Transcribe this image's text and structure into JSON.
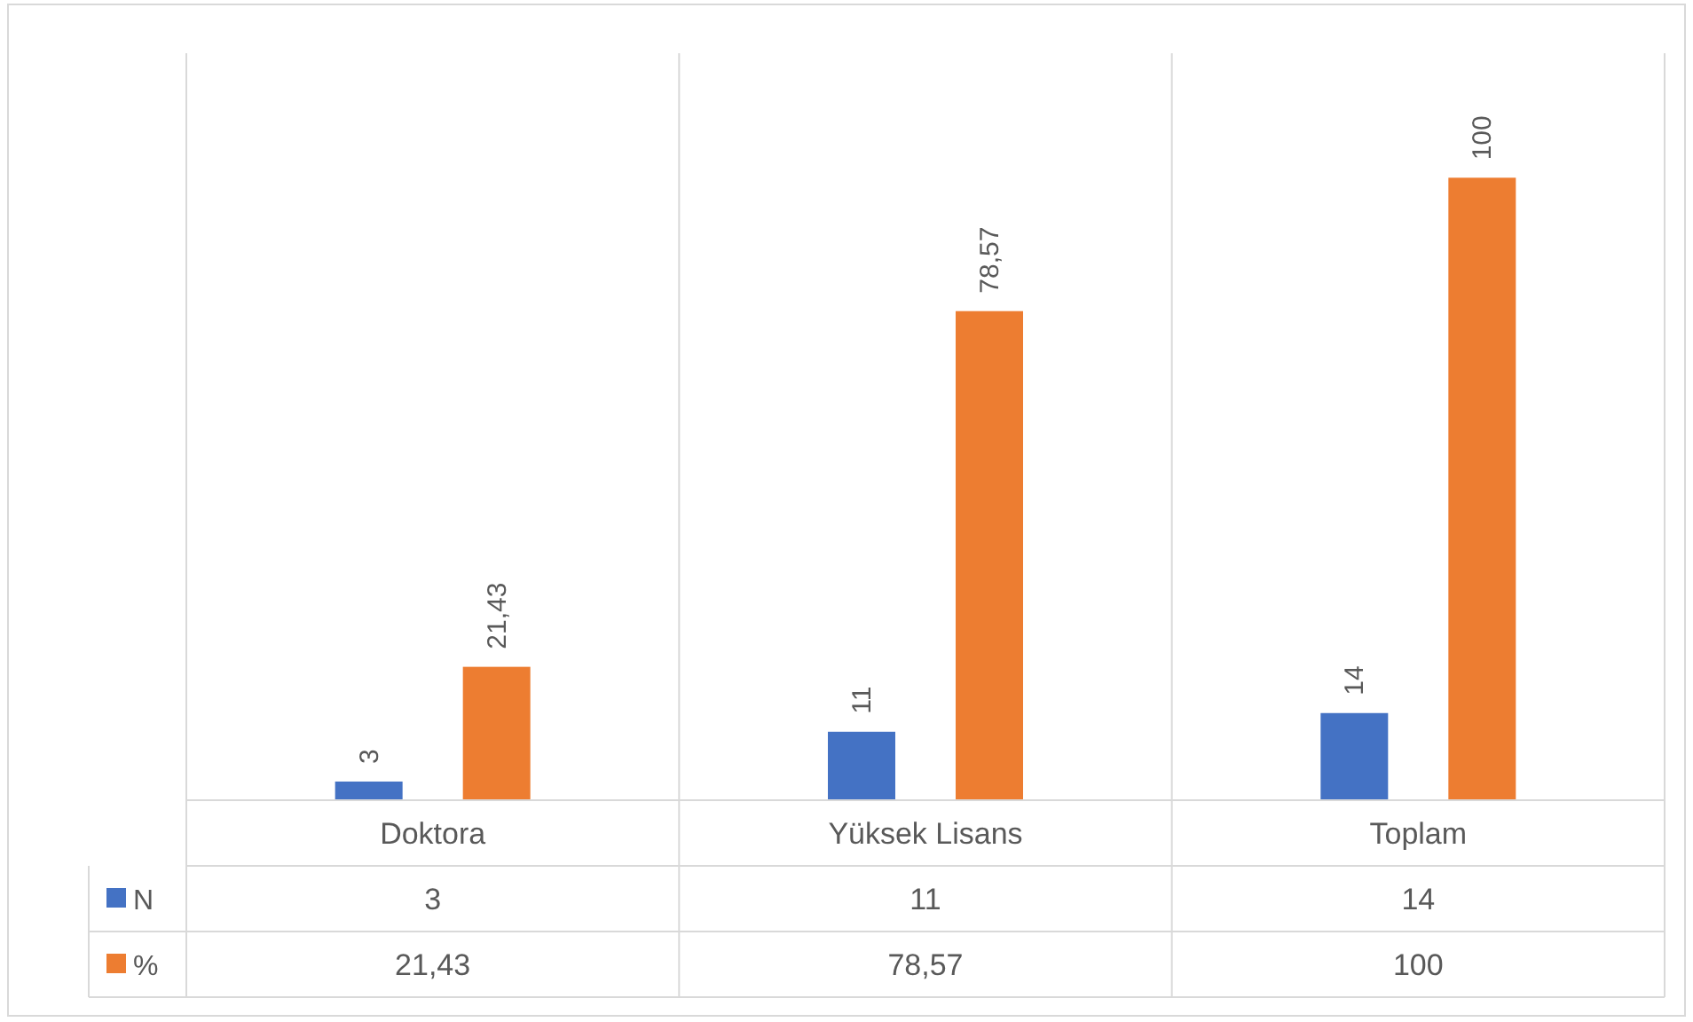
{
  "chart_data": {
    "type": "bar",
    "categories": [
      "Doktora",
      "Yüksek Lisans",
      "Toplam"
    ],
    "series": [
      {
        "name": "N",
        "color": "#4472c4",
        "values": [
          3,
          11,
          14
        ],
        "value_labels": [
          "3",
          "11",
          "14"
        ]
      },
      {
        "name": "%",
        "color": "#ed7d31",
        "values": [
          21.43,
          78.57,
          100
        ],
        "value_labels": [
          "21,43",
          "78,57",
          "100"
        ]
      }
    ],
    "data_labels": true,
    "grid": "x",
    "legend": "bottom"
  }
}
